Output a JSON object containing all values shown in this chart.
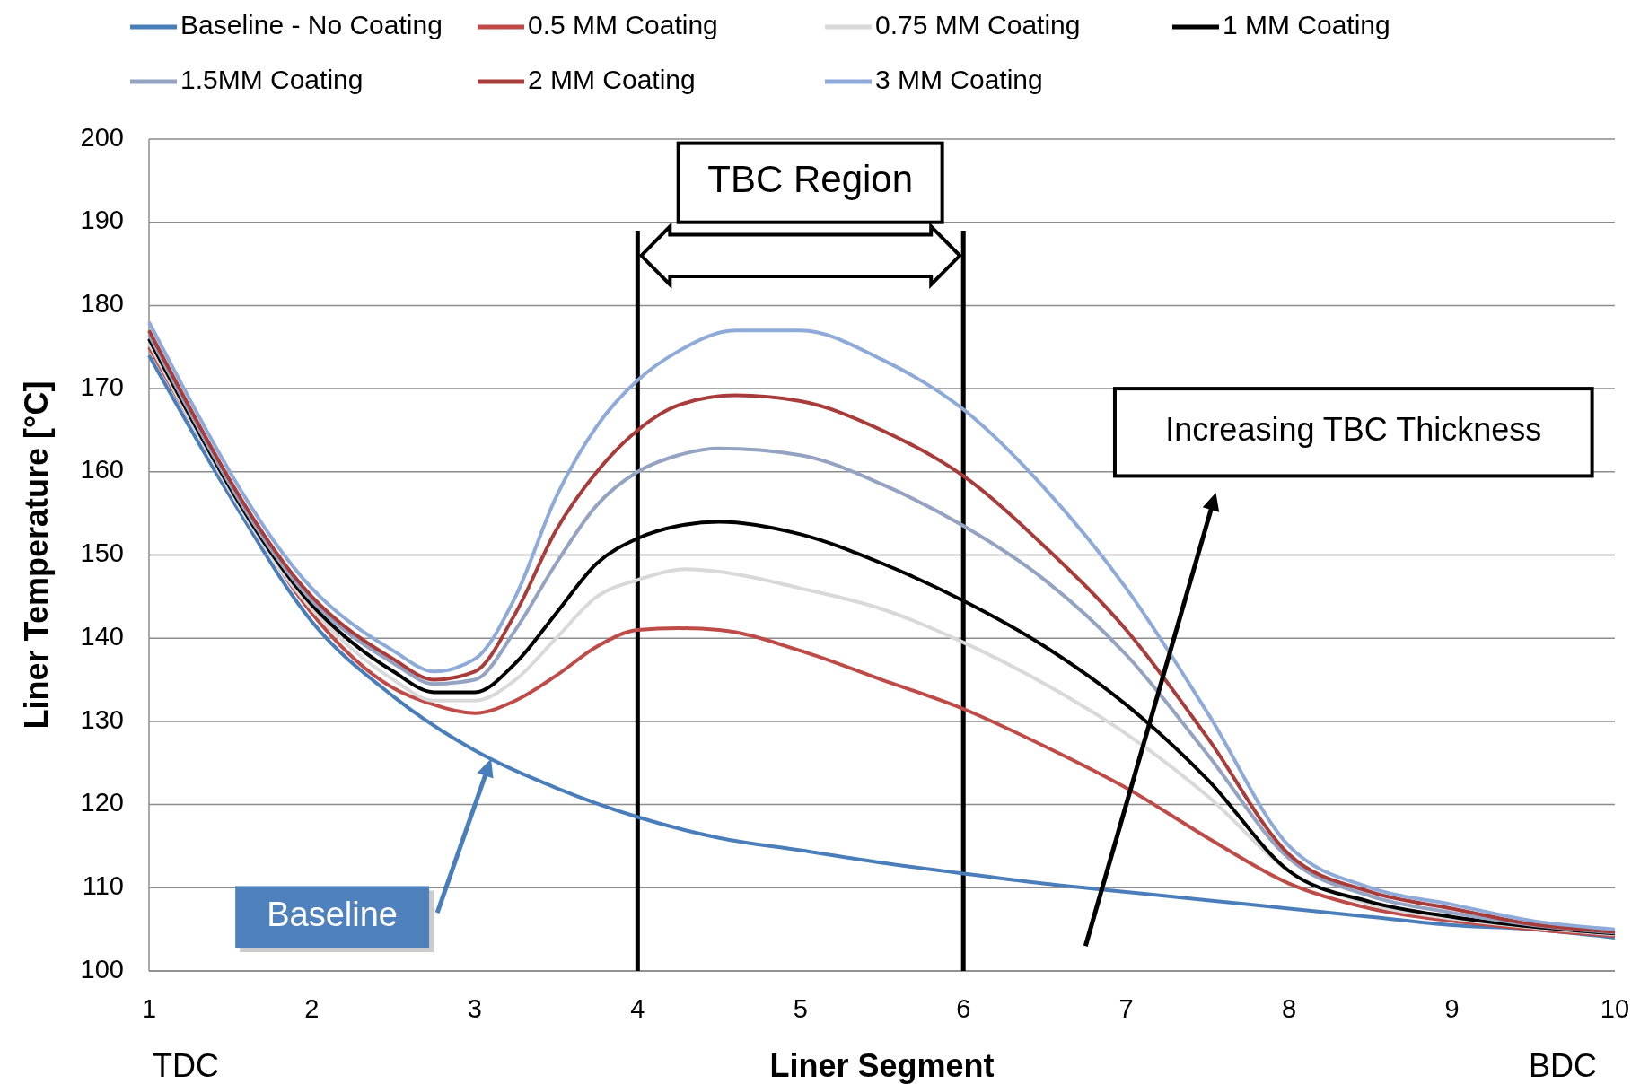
{
  "chart_data": {
    "type": "line",
    "xlabel": "Liner Segment",
    "ylabel": "Liner Temperature [°C]",
    "xlim": [
      1,
      10
    ],
    "xticks": [
      1,
      2,
      3,
      4,
      5,
      6,
      7,
      8,
      9,
      10
    ],
    "ylim": [
      100,
      200
    ],
    "yticks": [
      100,
      110,
      120,
      130,
      140,
      150,
      160,
      170,
      180,
      190,
      200
    ],
    "grid": "y",
    "legend": "top",
    "marker": "none",
    "line_style": "solid",
    "series": [
      {
        "name": "Baseline - No Coating",
        "color": "#4a7ebb",
        "x": [
          1,
          1.5,
          2,
          2.5,
          3,
          3.5,
          4,
          4.5,
          5,
          5.5,
          6,
          6.5,
          7,
          7.5,
          8,
          8.5,
          9,
          9.5,
          10
        ],
        "values": [
          174,
          157,
          142,
          133,
          126.5,
          122,
          118.5,
          116,
          114.5,
          113,
          111.7,
          110.5,
          109.5,
          108.5,
          107.5,
          106.5,
          105.5,
          105,
          104
        ]
      },
      {
        "name": "0.5 MM Coating",
        "color": "#be4b48",
        "x": [
          1,
          1.5,
          2,
          2.5,
          2.75,
          3,
          3.25,
          3.5,
          3.75,
          4,
          4.25,
          4.5,
          5,
          5.5,
          6,
          6.5,
          7,
          7.5,
          8,
          8.5,
          9,
          9.5,
          10
        ],
        "values": [
          175,
          158,
          143,
          134,
          132,
          131,
          132.5,
          135.5,
          139,
          141,
          141.2,
          141,
          138.5,
          135,
          131.5,
          127,
          122,
          116,
          110.5,
          107.5,
          106,
          105,
          104.2
        ]
      },
      {
        "name": "0.75 MM Coating",
        "color": "#d9d9d9",
        "x": [
          1,
          2,
          2.5,
          2.75,
          3,
          3.25,
          3.5,
          3.75,
          4,
          4.3,
          4.5,
          5,
          5.5,
          6,
          6.5,
          7,
          7.5,
          8,
          8.5,
          9,
          9.5,
          10
        ],
        "values": [
          175.5,
          143.5,
          135,
          132.5,
          132.5,
          135,
          140,
          145,
          147,
          148.3,
          148,
          146,
          143.5,
          139.5,
          134.5,
          128.5,
          121,
          112,
          108,
          106.3,
          105.2,
          104.4
        ]
      },
      {
        "name": "1 MM Coating",
        "color": "#000000",
        "x": [
          1,
          2,
          2.5,
          2.75,
          3,
          3.25,
          3.5,
          3.75,
          4,
          4.25,
          4.5,
          5,
          5.5,
          6,
          6.5,
          7,
          7.5,
          8,
          8.5,
          9,
          9.5,
          10
        ],
        "values": [
          176,
          144,
          136,
          133.5,
          133.5,
          137,
          143,
          149,
          152,
          153.5,
          154,
          152.5,
          149,
          144.5,
          139,
          132,
          123,
          112,
          108.3,
          106.5,
          105.3,
          104.5
        ]
      },
      {
        "name": "1.5MM Coating",
        "color": "#95a3c2",
        "x": [
          1,
          2,
          2.5,
          2.75,
          3,
          3.25,
          3.5,
          3.75,
          4,
          4.25,
          4.5,
          5,
          5.5,
          6,
          6.5,
          7,
          7.5,
          8,
          8.5,
          9,
          9.5,
          10
        ],
        "values": [
          176.5,
          144.5,
          137,
          134.5,
          135,
          141,
          149,
          156,
          160,
          162,
          162.8,
          162,
          158.5,
          153.5,
          147,
          138,
          126,
          113.5,
          109,
          107,
          105.5,
          104.6
        ]
      },
      {
        "name": "2 MM Coating",
        "color": "#a83c3a",
        "x": [
          1,
          2,
          2.5,
          2.75,
          3,
          3.25,
          3.5,
          3.75,
          4,
          4.25,
          4.6,
          5,
          5.5,
          6,
          6.5,
          7,
          7.5,
          8,
          8.5,
          9,
          9.5,
          10
        ],
        "values": [
          177,
          145,
          137.5,
          135,
          136,
          143,
          153,
          160,
          165,
          168,
          169.2,
          168.5,
          165,
          159.5,
          151,
          141,
          128,
          114,
          109.5,
          107.5,
          105.6,
          104.7
        ]
      },
      {
        "name": "3 MM Coating",
        "color": "#8eaad8",
        "x": [
          1,
          2,
          2.5,
          2.75,
          3,
          3.25,
          3.5,
          3.75,
          4,
          4.25,
          4.6,
          5,
          5.5,
          6,
          6.5,
          7,
          7.5,
          8,
          8.5,
          9,
          9.5,
          10
        ],
        "values": [
          178,
          146,
          138.5,
          136,
          137.5,
          145,
          157,
          165.5,
          171,
          174.5,
          177,
          177,
          173.5,
          167.5,
          158,
          146,
          131,
          115,
          110,
          108,
          106,
          105
        ]
      }
    ],
    "ref_lines": [
      {
        "axis": "x",
        "value": 4,
        "color": "#000000"
      },
      {
        "axis": "x",
        "value": 6,
        "color": "#000000"
      }
    ],
    "annotations": [
      "TBC Region",
      "Increasing TBC Thickness",
      "Baseline",
      "TDC",
      "BDC"
    ]
  }
}
